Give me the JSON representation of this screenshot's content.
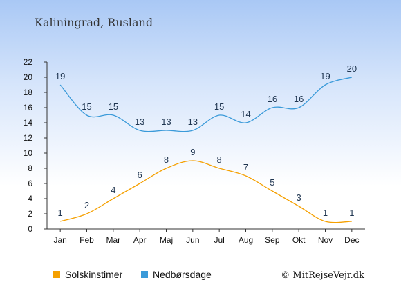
{
  "chart_data": {
    "type": "line",
    "title": "Kaliningrad, Rusland",
    "categories": [
      "Jan",
      "Feb",
      "Mar",
      "Apr",
      "Maj",
      "Jun",
      "Jul",
      "Aug",
      "Sep",
      "Okt",
      "Nov",
      "Dec"
    ],
    "ylim": [
      0,
      22
    ],
    "yticks": [
      0,
      2,
      4,
      6,
      8,
      10,
      12,
      14,
      16,
      18,
      20,
      22
    ],
    "grid": false,
    "legend_position": "bottom",
    "series": [
      {
        "name": "Solskinstimer",
        "color": "#f5a000",
        "values": [
          1,
          2,
          4,
          6,
          8,
          9,
          8,
          7,
          5,
          3,
          1,
          1
        ]
      },
      {
        "name": "Nedbørsdage",
        "color": "#3a9ad9",
        "values": [
          19,
          15,
          15,
          13,
          13,
          13,
          15,
          14,
          16,
          16,
          19,
          20
        ]
      }
    ]
  },
  "credit": "© MitRejseVejr.dk"
}
